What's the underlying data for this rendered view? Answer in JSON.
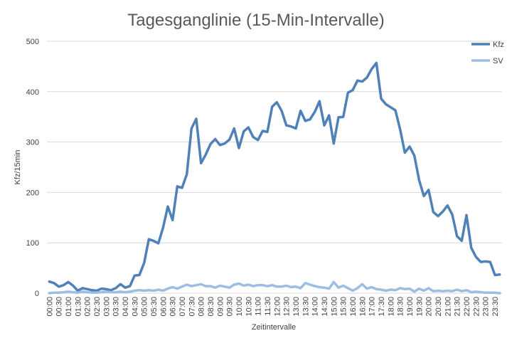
{
  "chart_data": {
    "type": "line",
    "title": "Tagesganglinie (15-Min-Intervalle)",
    "xlabel": "Zeitintervalle",
    "ylabel": "Kfz/15min",
    "ylim": [
      0,
      500
    ],
    "yticks": [
      0,
      100,
      200,
      300,
      400,
      500
    ],
    "grid": true,
    "legend": "right",
    "x": [
      "00:00",
      "00:15",
      "00:30",
      "00:45",
      "01:00",
      "01:15",
      "01:30",
      "01:45",
      "02:00",
      "02:15",
      "02:30",
      "02:45",
      "03:00",
      "03:15",
      "03:30",
      "03:45",
      "04:00",
      "04:15",
      "04:30",
      "04:45",
      "05:00",
      "05:15",
      "05:30",
      "05:45",
      "06:00",
      "06:15",
      "06:30",
      "06:45",
      "07:00",
      "07:15",
      "07:30",
      "07:45",
      "08:00",
      "08:15",
      "08:30",
      "08:45",
      "09:00",
      "09:15",
      "09:30",
      "09:45",
      "10:00",
      "10:15",
      "10:30",
      "10:45",
      "11:00",
      "11:15",
      "11:30",
      "11:45",
      "12:00",
      "12:15",
      "12:30",
      "12:45",
      "13:00",
      "13:15",
      "13:30",
      "13:45",
      "14:00",
      "14:15",
      "14:30",
      "14:45",
      "15:00",
      "15:15",
      "15:30",
      "15:45",
      "16:00",
      "16:15",
      "16:30",
      "16:45",
      "17:00",
      "17:15",
      "17:30",
      "17:45",
      "18:00",
      "18:15",
      "18:30",
      "18:45",
      "19:00",
      "19:15",
      "19:30",
      "19:45",
      "20:00",
      "20:15",
      "20:30",
      "20:45",
      "21:00",
      "21:15",
      "21:30",
      "21:45",
      "22:00",
      "22:15",
      "22:30",
      "22:45",
      "23:00",
      "23:15",
      "23:30",
      "23:45"
    ],
    "xtick_labels": [
      "00:00",
      "00:30",
      "01:00",
      "01:30",
      "02:00",
      "02:30",
      "03:00",
      "03:30",
      "04:00",
      "04:30",
      "05:00",
      "05:30",
      "06:00",
      "06:30",
      "07:00",
      "07:30",
      "08:00",
      "08:30",
      "09:00",
      "09:30",
      "10:00",
      "10:30",
      "11:00",
      "11:30",
      "12:00",
      "12:30",
      "13:00",
      "13:30",
      "14:00",
      "14:30",
      "15:00",
      "15:30",
      "16:00",
      "16:30",
      "17:00",
      "17:30",
      "18:00",
      "18:30",
      "19:00",
      "19:30",
      "20:00",
      "20:30",
      "21:00",
      "21:30",
      "22:00",
      "22:30",
      "23:00",
      "23:30"
    ],
    "series": [
      {
        "name": "Kfz",
        "color": "#4F81B9",
        "values": [
          23,
          20,
          13,
          16,
          22,
          15,
          5,
          10,
          8,
          6,
          5,
          9,
          8,
          6,
          10,
          18,
          11,
          14,
          35,
          36,
          60,
          107,
          104,
          99,
          130,
          172,
          145,
          212,
          209,
          236,
          327,
          346,
          258,
          275,
          296,
          306,
          294,
          297,
          305,
          327,
          288,
          321,
          329,
          310,
          304,
          322,
          320,
          370,
          379,
          362,
          333,
          331,
          327,
          362,
          342,
          345,
          360,
          381,
          333,
          353,
          297,
          349,
          350,
          398,
          403,
          422,
          420,
          428,
          445,
          457,
          386,
          375,
          369,
          363,
          325,
          279,
          291,
          273,
          225,
          193,
          205,
          161,
          153,
          162,
          174,
          156,
          113,
          104,
          155,
          90,
          72,
          62,
          63,
          62,
          36,
          37
        ]
      },
      {
        "name": "SV",
        "color": "#9DBDE3",
        "values": [
          0,
          1,
          1,
          2,
          3,
          2,
          1,
          3,
          2,
          1,
          1,
          2,
          3,
          2,
          2,
          3,
          2,
          3,
          5,
          6,
          5,
          6,
          5,
          7,
          5,
          9,
          12,
          9,
          13,
          17,
          14,
          16,
          18,
          14,
          14,
          11,
          15,
          13,
          11,
          17,
          19,
          15,
          17,
          14,
          16,
          16,
          14,
          16,
          13,
          13,
          15,
          12,
          13,
          10,
          20,
          17,
          14,
          12,
          11,
          9,
          22,
          11,
          15,
          10,
          5,
          10,
          18,
          9,
          12,
          8,
          7,
          5,
          7,
          6,
          10,
          8,
          9,
          3,
          9,
          5,
          10,
          4,
          5,
          4,
          5,
          4,
          7,
          4,
          6,
          2,
          3,
          2,
          1,
          1,
          1,
          0
        ]
      }
    ]
  }
}
